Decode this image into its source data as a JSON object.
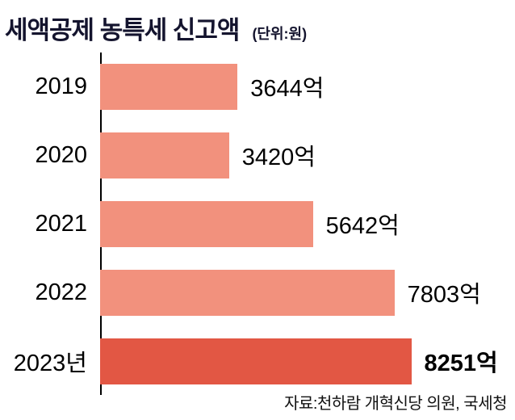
{
  "title": "세액공제 농특세 신고액",
  "unit_label": "(단위:원)",
  "source": "자료:천하람 개혁신당 의원, 국세청",
  "colors": {
    "bar": "#F2917D",
    "bar_highlight": "#E25744",
    "title_text": "#14142E",
    "axis": "#000000"
  },
  "chart_data": {
    "type": "bar",
    "orientation": "horizontal",
    "title": "세액공제 농특세 신고액",
    "unit": "(단위:원)",
    "categories": [
      "2019",
      "2020",
      "2021",
      "2022",
      "2023년"
    ],
    "values": [
      3644,
      3420,
      5642,
      7803,
      8251
    ],
    "value_labels": [
      "3644억",
      "3420억",
      "5642억",
      "7803억",
      "8251억"
    ],
    "highlight_index": 4,
    "xlim": [
      0,
      11000
    ],
    "grid": false,
    "legend": false,
    "source": "자료:천하람 개혁신당 의원, 국세청"
  }
}
